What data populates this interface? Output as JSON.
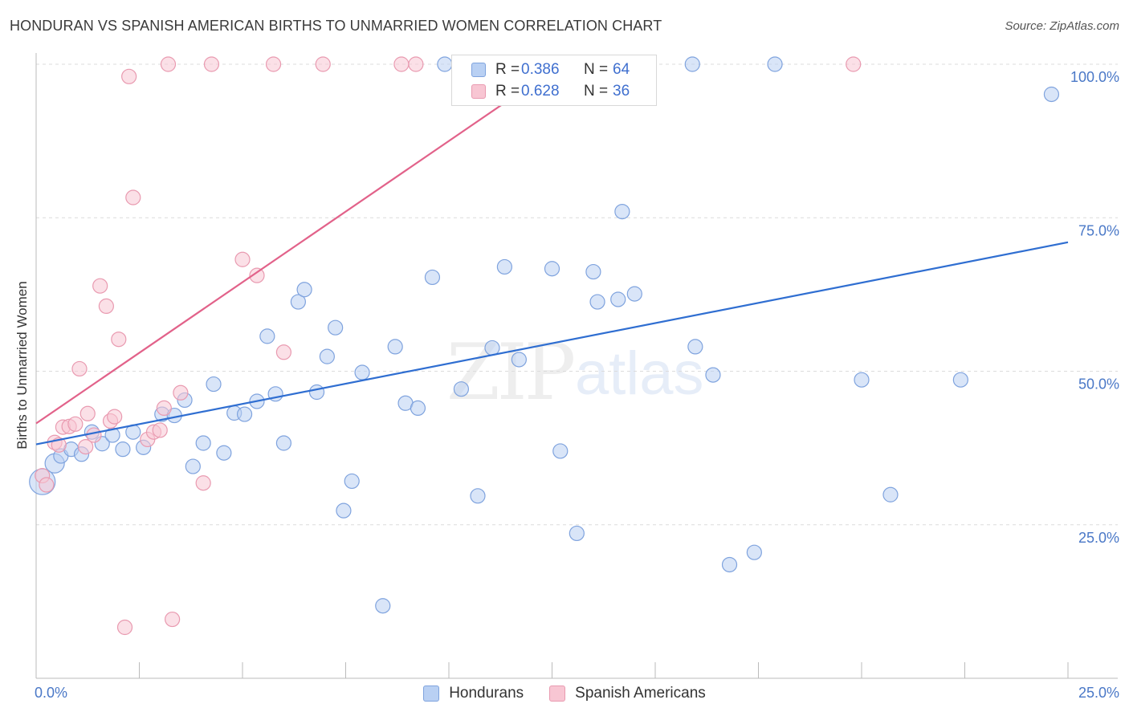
{
  "title": "HONDURAN VS SPANISH AMERICAN BIRTHS TO UNMARRIED WOMEN CORRELATION CHART",
  "source": "Source: ZipAtlas.com",
  "watermark": {
    "zip": "ZIP",
    "atlas": "atlas"
  },
  "colors": {
    "blue_fill": "#b9d0f3",
    "blue_stroke": "#7fa3de",
    "blue_line": "#2f6ed1",
    "pink_fill": "#f8c6d3",
    "pink_stroke": "#e99ab0",
    "pink_line": "#e2628a",
    "grid": "#dcdcdc",
    "tick_text": "#4a78c7"
  },
  "legend_top": [
    {
      "r_label": "R =",
      "r_value": "0.386",
      "n_label": "N =",
      "n_value": "64"
    },
    {
      "r_label": "R =",
      "r_value": "0.628",
      "n_label": "N =",
      "n_value": "36"
    }
  ],
  "chart_data": {
    "type": "scatter",
    "title": "HONDURAN VS SPANISH AMERICAN BIRTHS TO UNMARRIED WOMEN CORRELATION CHART",
    "xlabel": "",
    "ylabel": "Births to Unmarried Women",
    "xlim": [
      0,
      25
    ],
    "ylim": [
      0,
      100
    ],
    "x_tick_labels": [
      "0.0%",
      "25.0%"
    ],
    "y_ticks": [
      25,
      50,
      75,
      100
    ],
    "y_tick_labels": [
      "25.0%",
      "50.0%",
      "75.0%",
      "100.0%"
    ],
    "grid": true,
    "legend_position": "bottom",
    "series": [
      {
        "name": "Hondurans",
        "color": "#b9d0f3",
        "trend": {
          "x": [
            0,
            25
          ],
          "y": [
            38.1,
            71.0
          ]
        },
        "points": [
          [
            0.15,
            32.0,
            16
          ],
          [
            0.45,
            35.0,
            12
          ],
          [
            0.6,
            36.2,
            9
          ],
          [
            0.85,
            37.3,
            9
          ],
          [
            1.1,
            36.5,
            9
          ],
          [
            1.35,
            40.1,
            9
          ],
          [
            1.6,
            38.2,
            9
          ],
          [
            1.85,
            39.6,
            9
          ],
          [
            2.1,
            37.3,
            9
          ],
          [
            2.35,
            40.1,
            9
          ],
          [
            2.6,
            37.6,
            9
          ],
          [
            3.05,
            43.0,
            9
          ],
          [
            3.35,
            42.8,
            9
          ],
          [
            3.6,
            45.3,
            9
          ],
          [
            3.8,
            34.5,
            9
          ],
          [
            4.05,
            38.3,
            9
          ],
          [
            4.3,
            47.9,
            9
          ],
          [
            4.55,
            36.7,
            9
          ],
          [
            4.8,
            43.2,
            9
          ],
          [
            5.05,
            43.0,
            9
          ],
          [
            5.35,
            45.1,
            9
          ],
          [
            5.6,
            55.7,
            9
          ],
          [
            5.8,
            46.3,
            9
          ],
          [
            6.0,
            38.3,
            9
          ],
          [
            6.35,
            61.3,
            9
          ],
          [
            6.5,
            63.3,
            9
          ],
          [
            6.8,
            46.6,
            9
          ],
          [
            7.05,
            52.4,
            9
          ],
          [
            7.25,
            57.1,
            9
          ],
          [
            7.45,
            27.3,
            9
          ],
          [
            7.65,
            32.1,
            9
          ],
          [
            7.9,
            49.8,
            9
          ],
          [
            8.4,
            11.8,
            9
          ],
          [
            8.7,
            54.0,
            9
          ],
          [
            8.95,
            44.8,
            9
          ],
          [
            9.25,
            44.0,
            9
          ],
          [
            9.6,
            65.3,
            9
          ],
          [
            9.9,
            100.0,
            9
          ],
          [
            10.3,
            47.1,
            9
          ],
          [
            10.5,
            100.0,
            9
          ],
          [
            10.7,
            29.7,
            9
          ],
          [
            11.05,
            53.8,
            9
          ],
          [
            11.35,
            67.0,
            9
          ],
          [
            11.7,
            51.9,
            9
          ],
          [
            12.2,
            100.0,
            9
          ],
          [
            12.5,
            66.7,
            9
          ],
          [
            12.7,
            37.0,
            9
          ],
          [
            12.95,
            100.0,
            9
          ],
          [
            13.1,
            23.6,
            9
          ],
          [
            13.5,
            66.2,
            9
          ],
          [
            13.6,
            61.3,
            9
          ],
          [
            14.1,
            61.7,
            9
          ],
          [
            14.2,
            76.0,
            9
          ],
          [
            14.5,
            62.6,
            9
          ],
          [
            15.9,
            100.0,
            9
          ],
          [
            15.97,
            54.0,
            9
          ],
          [
            16.4,
            49.4,
            9
          ],
          [
            16.8,
            18.5,
            9
          ],
          [
            17.4,
            20.5,
            9
          ],
          [
            17.9,
            100.0,
            9
          ],
          [
            20.0,
            48.6,
            9
          ],
          [
            20.7,
            29.9,
            9
          ],
          [
            22.4,
            48.6,
            9
          ],
          [
            24.6,
            95.1,
            9
          ]
        ]
      },
      {
        "name": "Spanish Americans",
        "color": "#f8c6d3",
        "trend": {
          "x": [
            0,
            12.5
          ],
          "y": [
            41.5,
            99.0
          ]
        },
        "points": [
          [
            0.15,
            33.0,
            9
          ],
          [
            0.25,
            31.5,
            9
          ],
          [
            0.45,
            38.4,
            9
          ],
          [
            0.55,
            38.0,
            9
          ],
          [
            0.65,
            40.9,
            9
          ],
          [
            0.8,
            41.0,
            9
          ],
          [
            0.95,
            41.4,
            9
          ],
          [
            1.2,
            37.7,
            9
          ],
          [
            1.05,
            50.4,
            9
          ],
          [
            1.25,
            43.1,
            9
          ],
          [
            1.4,
            39.6,
            9
          ],
          [
            1.55,
            63.9,
            9
          ],
          [
            1.7,
            60.6,
            9
          ],
          [
            1.8,
            41.9,
            9
          ],
          [
            1.9,
            42.6,
            9
          ],
          [
            2.0,
            55.2,
            9
          ],
          [
            2.15,
            8.3,
            9
          ],
          [
            2.25,
            98.0,
            9
          ],
          [
            2.35,
            78.3,
            9
          ],
          [
            2.7,
            38.9,
            9
          ],
          [
            2.85,
            40.1,
            9
          ],
          [
            3.0,
            40.4,
            9
          ],
          [
            3.1,
            44.0,
            9
          ],
          [
            3.2,
            100.0,
            9
          ],
          [
            3.3,
            9.6,
            9
          ],
          [
            3.5,
            46.5,
            9
          ],
          [
            4.05,
            31.8,
            9
          ],
          [
            4.25,
            100.0,
            9
          ],
          [
            5.0,
            68.2,
            9
          ],
          [
            5.35,
            65.6,
            9
          ],
          [
            5.75,
            100.0,
            9
          ],
          [
            6.0,
            53.1,
            9
          ],
          [
            6.95,
            100.0,
            9
          ],
          [
            8.85,
            100.0,
            9
          ],
          [
            9.2,
            100.0,
            9
          ],
          [
            19.8,
            100.0,
            9
          ]
        ]
      }
    ]
  }
}
